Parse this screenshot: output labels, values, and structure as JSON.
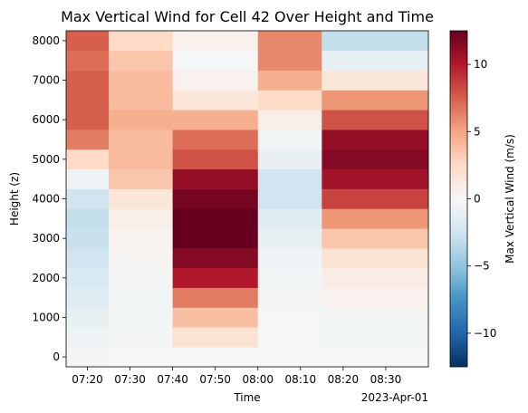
{
  "chart_data": {
    "type": "heatmap",
    "title": "Max Vertical Wind for Cell 42 Over Height and Time",
    "xlabel": "Time",
    "ylabel": "Height (z)",
    "x_offset_label": "2023-Apr-01",
    "colorbar_label": "Max Vertical Wind (m/s)",
    "colormap": "RdBu_r",
    "colorbar_range": [
      -12.5,
      12.5
    ],
    "colorbar_ticks": [
      -10,
      -5,
      0,
      5,
      10
    ],
    "colorbar_tick_labels": [
      "−10",
      "−5",
      "0",
      "5",
      "10"
    ],
    "x_ticks": [
      "07:20",
      "07:30",
      "07:40",
      "07:50",
      "08:00",
      "08:10",
      "08:20",
      "08:30"
    ],
    "y_ticks": [
      0,
      1000,
      2000,
      3000,
      4000,
      5000,
      6000,
      7000,
      8000
    ],
    "y_tick_labels": [
      "0",
      "1000",
      "2000",
      "3000",
      "4000",
      "5000",
      "6000",
      "7000",
      "8000"
    ],
    "y_range": [
      -250,
      8250
    ],
    "time_columns": [
      {
        "start": "07:15",
        "end": "07:25"
      },
      {
        "start": "07:25",
        "end": "07:40"
      },
      {
        "start": "07:40",
        "end": "08:00"
      },
      {
        "start": "08:00",
        "end": "08:15"
      },
      {
        "start": "08:15",
        "end": "08:40"
      }
    ],
    "height_levels": [
      0,
      500,
      1000,
      1500,
      2000,
      2500,
      3000,
      3500,
      4000,
      4500,
      5000,
      5500,
      6000,
      6500,
      7000,
      7500,
      8000
    ],
    "values": [
      [
        -0.2,
        -0.1,
        -0.1,
        -0.1,
        -0.1
      ],
      [
        -0.6,
        -0.2,
        1.8,
        -0.1,
        -0.3
      ],
      [
        -1.0,
        -0.3,
        3.8,
        -0.1,
        -0.2
      ],
      [
        -1.5,
        -0.3,
        6.5,
        -0.2,
        0.5
      ],
      [
        -2.0,
        -0.2,
        10.0,
        -0.3,
        1.0
      ],
      [
        -2.5,
        0.2,
        11.5,
        -0.6,
        1.8
      ],
      [
        -2.8,
        0.4,
        12.5,
        -1.0,
        3.5
      ],
      [
        -3.0,
        0.8,
        12.5,
        -1.5,
        5.5
      ],
      [
        -2.5,
        1.5,
        12.0,
        -2.5,
        8.5
      ],
      [
        -0.5,
        3.5,
        11.0,
        -2.5,
        10.5
      ],
      [
        2.5,
        4.0,
        8.0,
        -1.0,
        11.5
      ],
      [
        6.5,
        4.0,
        7.0,
        -0.3,
        11.0
      ],
      [
        7.5,
        4.5,
        4.5,
        0.8,
        8.0
      ],
      [
        7.5,
        4.0,
        1.5,
        2.5,
        5.5
      ],
      [
        7.5,
        4.0,
        0.5,
        4.5,
        1.5
      ],
      [
        7.0,
        3.5,
        -0.1,
        6.0,
        -1.0
      ],
      [
        7.5,
        2.5,
        0.5,
        6.0,
        -3.0
      ]
    ]
  }
}
